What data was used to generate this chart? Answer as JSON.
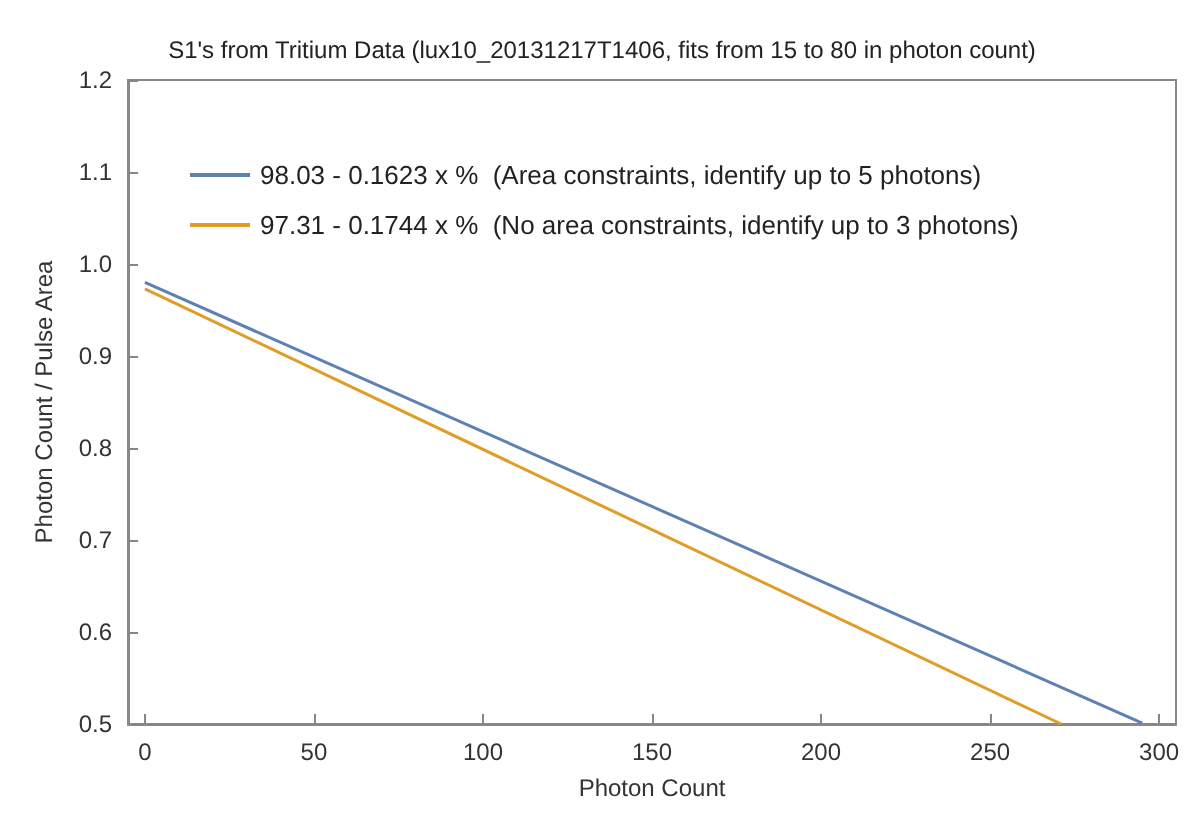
{
  "chart_data": {
    "type": "line",
    "title": "S1's from Tritium Data (lux10_20131217T1406, fits from 15 to 80 in photon count)",
    "xlabel": "Photon Count",
    "ylabel": "Photon Count / Pulse Area",
    "series": [
      {
        "name": "98.03 - 0.1623 x %  (Area constraints, identify up to 5 photons)",
        "color": "#5e81b5",
        "x": [
          0,
          295
        ],
        "values": [
          0.98,
          0.501
        ]
      },
      {
        "name": "97.31 - 0.1744 x %  (No area constraints, identify up to 3 photons)",
        "color": "#e19c24",
        "x": [
          0,
          271
        ],
        "values": [
          0.973,
          0.5
        ]
      }
    ],
    "xlim": [
      -5,
      305
    ],
    "xticks": [
      0,
      50,
      100,
      150,
      200,
      250,
      300
    ],
    "ylim": [
      0.5,
      1.2
    ],
    "yticks": [
      0.5,
      0.6,
      0.7,
      0.8,
      0.9,
      {
        "value": 1,
        "label": "1.0"
      },
      1.1,
      1.2
    ],
    "legend": "top",
    "marker": "none",
    "line_style": "solid"
  }
}
